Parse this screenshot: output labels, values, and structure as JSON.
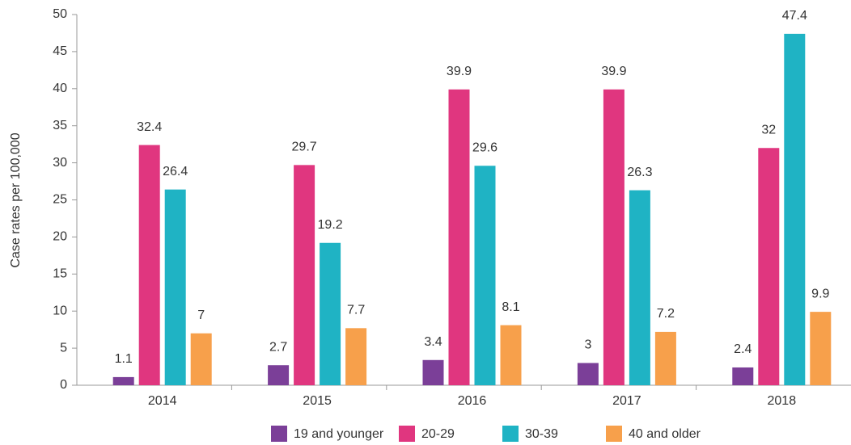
{
  "chart_data": {
    "type": "bar",
    "y_label": "Case rates per 100,000",
    "categories": [
      "2014",
      "2015",
      "2016",
      "2017",
      "2018"
    ],
    "series": [
      {
        "name": "19 and younger",
        "color": "#7b3f98",
        "values": [
          1.1,
          2.7,
          3.4,
          3,
          2.4
        ]
      },
      {
        "name": "20-29",
        "color": "#e0367f",
        "values": [
          32.4,
          29.7,
          39.9,
          39.9,
          32
        ]
      },
      {
        "name": "30-39",
        "color": "#1fb3c4",
        "values": [
          26.4,
          19.2,
          29.6,
          26.3,
          47.4
        ]
      },
      {
        "name": "40 and older",
        "color": "#f7a04b",
        "values": [
          7,
          7.7,
          8.1,
          7.2,
          9.9
        ]
      }
    ],
    "ylim": [
      0,
      50
    ],
    "yticks": [
      0,
      5,
      10,
      15,
      20,
      25,
      30,
      35,
      40,
      45,
      50
    ],
    "grid": false,
    "legend": "bottom"
  }
}
